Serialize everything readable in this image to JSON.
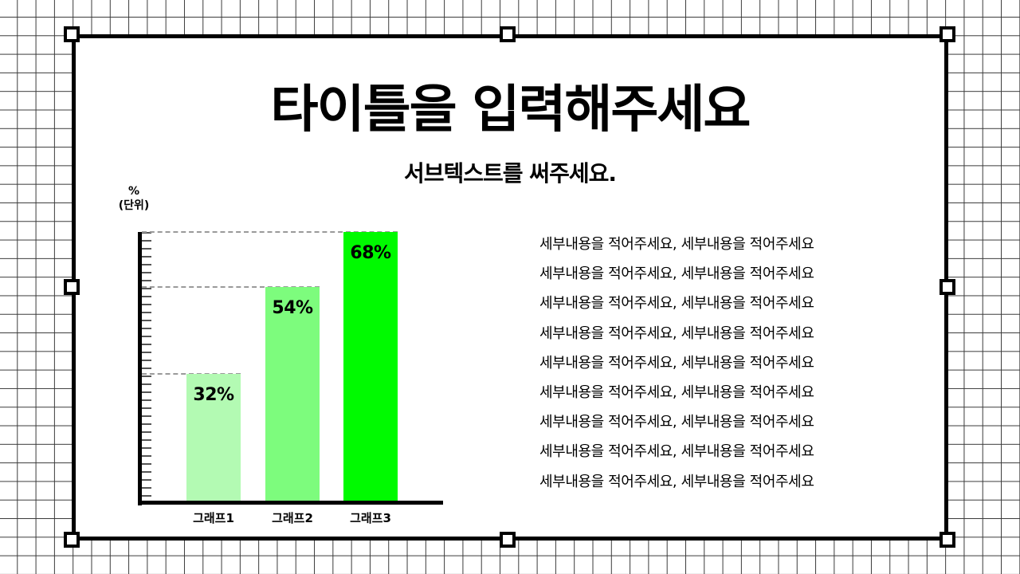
{
  "slide": {
    "title": "타이틀을 입력해주세요",
    "subtitle": "서브텍스트를 써주세요.",
    "unit_label_line1": "%",
    "unit_label_line2": "(단위)",
    "details": [
      "세부내용을 적어주세요, 세부내용을 적어주세요",
      "세부내용을 적어주세요, 세부내용을 적어주세요",
      "세부내용을 적어주세요, 세부내용을 적어주세요",
      "세부내용을 적어주세요, 세부내용을 적어주세요",
      "세부내용을 적어주세요, 세부내용을 적어주세요",
      "세부내용을 적어주세요, 세부내용을 적어주세요",
      "세부내용을 적어주세요, 세부내용을 적어주세요",
      "세부내용을 적어주세요, 세부내용을 적어주세요",
      "세부내용을 적어주세요, 세부내용을 적어주세요"
    ]
  },
  "colors": {
    "bar1": "#b3fab3",
    "bar2": "#7dfc7d",
    "bar3": "#00fa00",
    "frame": "#000000",
    "grid": "#3a3a3a"
  },
  "chart_data": {
    "type": "bar",
    "title": "",
    "xlabel": "",
    "ylabel": "% (단위)",
    "categories": [
      "그래프1",
      "그래프2",
      "그래프3"
    ],
    "values": [
      32,
      54,
      68
    ],
    "value_labels": [
      "32%",
      "54%",
      "68%"
    ],
    "ylim": [
      0,
      68
    ],
    "grid": false,
    "legend": null,
    "annotations": [
      "dashed guide lines from y-axis to top of each bar"
    ]
  }
}
